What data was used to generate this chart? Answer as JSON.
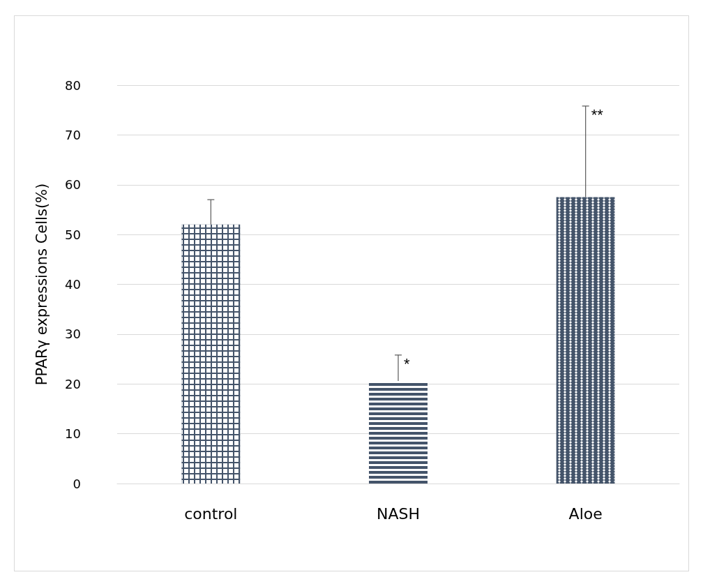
{
  "chart_data": {
    "type": "bar",
    "ylabel": "PPARγ expressions Cells(%)",
    "categories": [
      "control",
      "NASH",
      "Aloe"
    ],
    "values": [
      52,
      20.6,
      57.5
    ],
    "errors": [
      5,
      5.2,
      18.3
    ],
    "color": "#44546a",
    "ylim": [
      0,
      80
    ],
    "yticks": [
      0,
      10,
      20,
      30,
      40,
      50,
      60,
      70,
      80
    ],
    "grid": "y",
    "annotations": [
      {
        "text": "*",
        "x": "NASH",
        "y": 25.8
      },
      {
        "text": "**",
        "x": "Aloe",
        "y": 75.8
      }
    ]
  }
}
